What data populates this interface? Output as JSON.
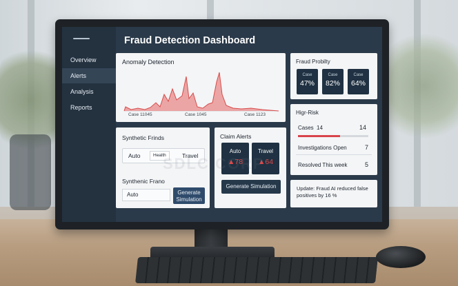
{
  "sidebar": {
    "items": [
      {
        "label": "Overview",
        "active": false
      },
      {
        "label": "Alerts",
        "active": true
      },
      {
        "label": "Analysis",
        "active": false
      },
      {
        "label": "Reports",
        "active": false
      }
    ]
  },
  "dashboard": {
    "title": "Fraud Detection Dashboard"
  },
  "anomaly": {
    "title": "Anomaly Detection",
    "x_labels": [
      "Case 11045",
      "Case 1045",
      "Case 1123"
    ],
    "line_color": "#d74b4b",
    "fill_color": "#e98a8a"
  },
  "probability": {
    "title": "Fraud Probilty",
    "boxes": [
      {
        "label": "Case",
        "value": "47%"
      },
      {
        "label": "Case",
        "value": "82%"
      },
      {
        "label": "Case",
        "value": "64%"
      }
    ]
  },
  "high_risk": {
    "title": "Higr-Risk",
    "rows": [
      {
        "label": "Cases",
        "inline": "14",
        "value": "14"
      },
      {
        "label": "Investigations Open",
        "value": "7"
      },
      {
        "label": "Resolved This week",
        "value": "5"
      }
    ],
    "progress": 0.6,
    "progress_color": "#d9434b"
  },
  "synthetic": {
    "title": "Synthetic Frinds",
    "pills": [
      "Auto",
      "Health",
      "Travel"
    ],
    "title2": "Synthenic Frano",
    "input_value": "Auto",
    "button": "Generate Simulation"
  },
  "claim_alerts": {
    "title": "Claim Alerts",
    "boxes": [
      {
        "label": "Auto",
        "value": "78"
      },
      {
        "label": "Travel",
        "value": "64"
      }
    ],
    "button": "Generate Simulation"
  },
  "update": {
    "text": "Update: Fraud AI reduced false positives by 16 %"
  },
  "watermark": "SDLC CORP"
}
